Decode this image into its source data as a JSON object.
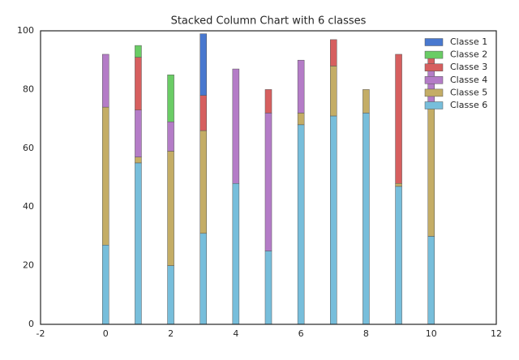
{
  "chart_data": {
    "type": "stacked_bar",
    "title": "Stacked Column Chart with 6 classes",
    "x": [
      0,
      1,
      2,
      3,
      4,
      5,
      6,
      7,
      8,
      9,
      10
    ],
    "series": [
      {
        "name": "Classe 1",
        "color": "#4878cf",
        "values": [
          0,
          0,
          0,
          21,
          0,
          0,
          0,
          0,
          0,
          0,
          0
        ]
      },
      {
        "name": "Classe 2",
        "color": "#6acc65",
        "values": [
          0,
          4,
          16,
          0,
          0,
          0,
          0,
          0,
          0,
          0,
          0
        ]
      },
      {
        "name": "Classe 3",
        "color": "#d65f5f",
        "values": [
          0,
          18,
          0,
          12,
          0,
          8,
          0,
          9,
          0,
          44,
          4
        ]
      },
      {
        "name": "Classe 4",
        "color": "#b47cc7",
        "values": [
          18,
          16,
          10,
          0,
          39,
          47,
          18,
          0,
          0,
          0,
          14
        ]
      },
      {
        "name": "Classe 5",
        "color": "#c4ad66",
        "values": [
          47,
          2,
          39,
          35,
          0,
          0,
          4,
          17,
          8,
          1,
          44
        ]
      },
      {
        "name": "Classe 6",
        "color": "#77bedb",
        "values": [
          27,
          55,
          20,
          31,
          48,
          25,
          68,
          71,
          72,
          47,
          30
        ]
      }
    ],
    "xlim": [
      -2,
      12
    ],
    "xticks": [
      -2,
      0,
      2,
      4,
      6,
      8,
      10,
      12
    ],
    "ylim": [
      0,
      100
    ],
    "yticks": [
      0,
      20,
      40,
      60,
      80,
      100
    ],
    "legend": "upper right"
  }
}
